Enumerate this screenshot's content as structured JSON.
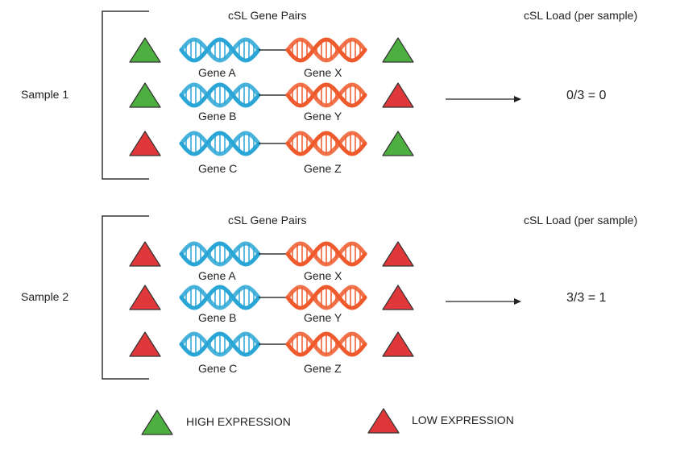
{
  "colors": {
    "high": "#4caf3f",
    "low": "#e0373a",
    "stroke": "#333333",
    "dna_left": "#2aa6d6",
    "dna_right": "#ef5a2c"
  },
  "panels": [
    {
      "sample_label": "Sample 1",
      "pairs_title": "cSL Gene Pairs",
      "load_title": "cSL Load (per sample)",
      "load_value": "0/3 = 0",
      "pairs": [
        {
          "left_gene": "Gene A",
          "right_gene": "Gene X",
          "left_expr": "high",
          "right_expr": "high"
        },
        {
          "left_gene": "Gene B",
          "right_gene": "Gene Y",
          "left_expr": "high",
          "right_expr": "low"
        },
        {
          "left_gene": "Gene C",
          "right_gene": "Gene Z",
          "left_expr": "low",
          "right_expr": "high"
        }
      ]
    },
    {
      "sample_label": "Sample 2",
      "pairs_title": "cSL Gene Pairs",
      "load_title": "cSL Load (per sample)",
      "load_value": "3/3 = 1",
      "pairs": [
        {
          "left_gene": "Gene A",
          "right_gene": "Gene X",
          "left_expr": "low",
          "right_expr": "low"
        },
        {
          "left_gene": "Gene B",
          "right_gene": "Gene Y",
          "left_expr": "low",
          "right_expr": "low"
        },
        {
          "left_gene": "Gene C",
          "right_gene": "Gene Z",
          "left_expr": "low",
          "right_expr": "low"
        }
      ]
    }
  ],
  "legend": {
    "high_label": "HIGH EXPRESSION",
    "low_label": "LOW EXPRESSION"
  }
}
